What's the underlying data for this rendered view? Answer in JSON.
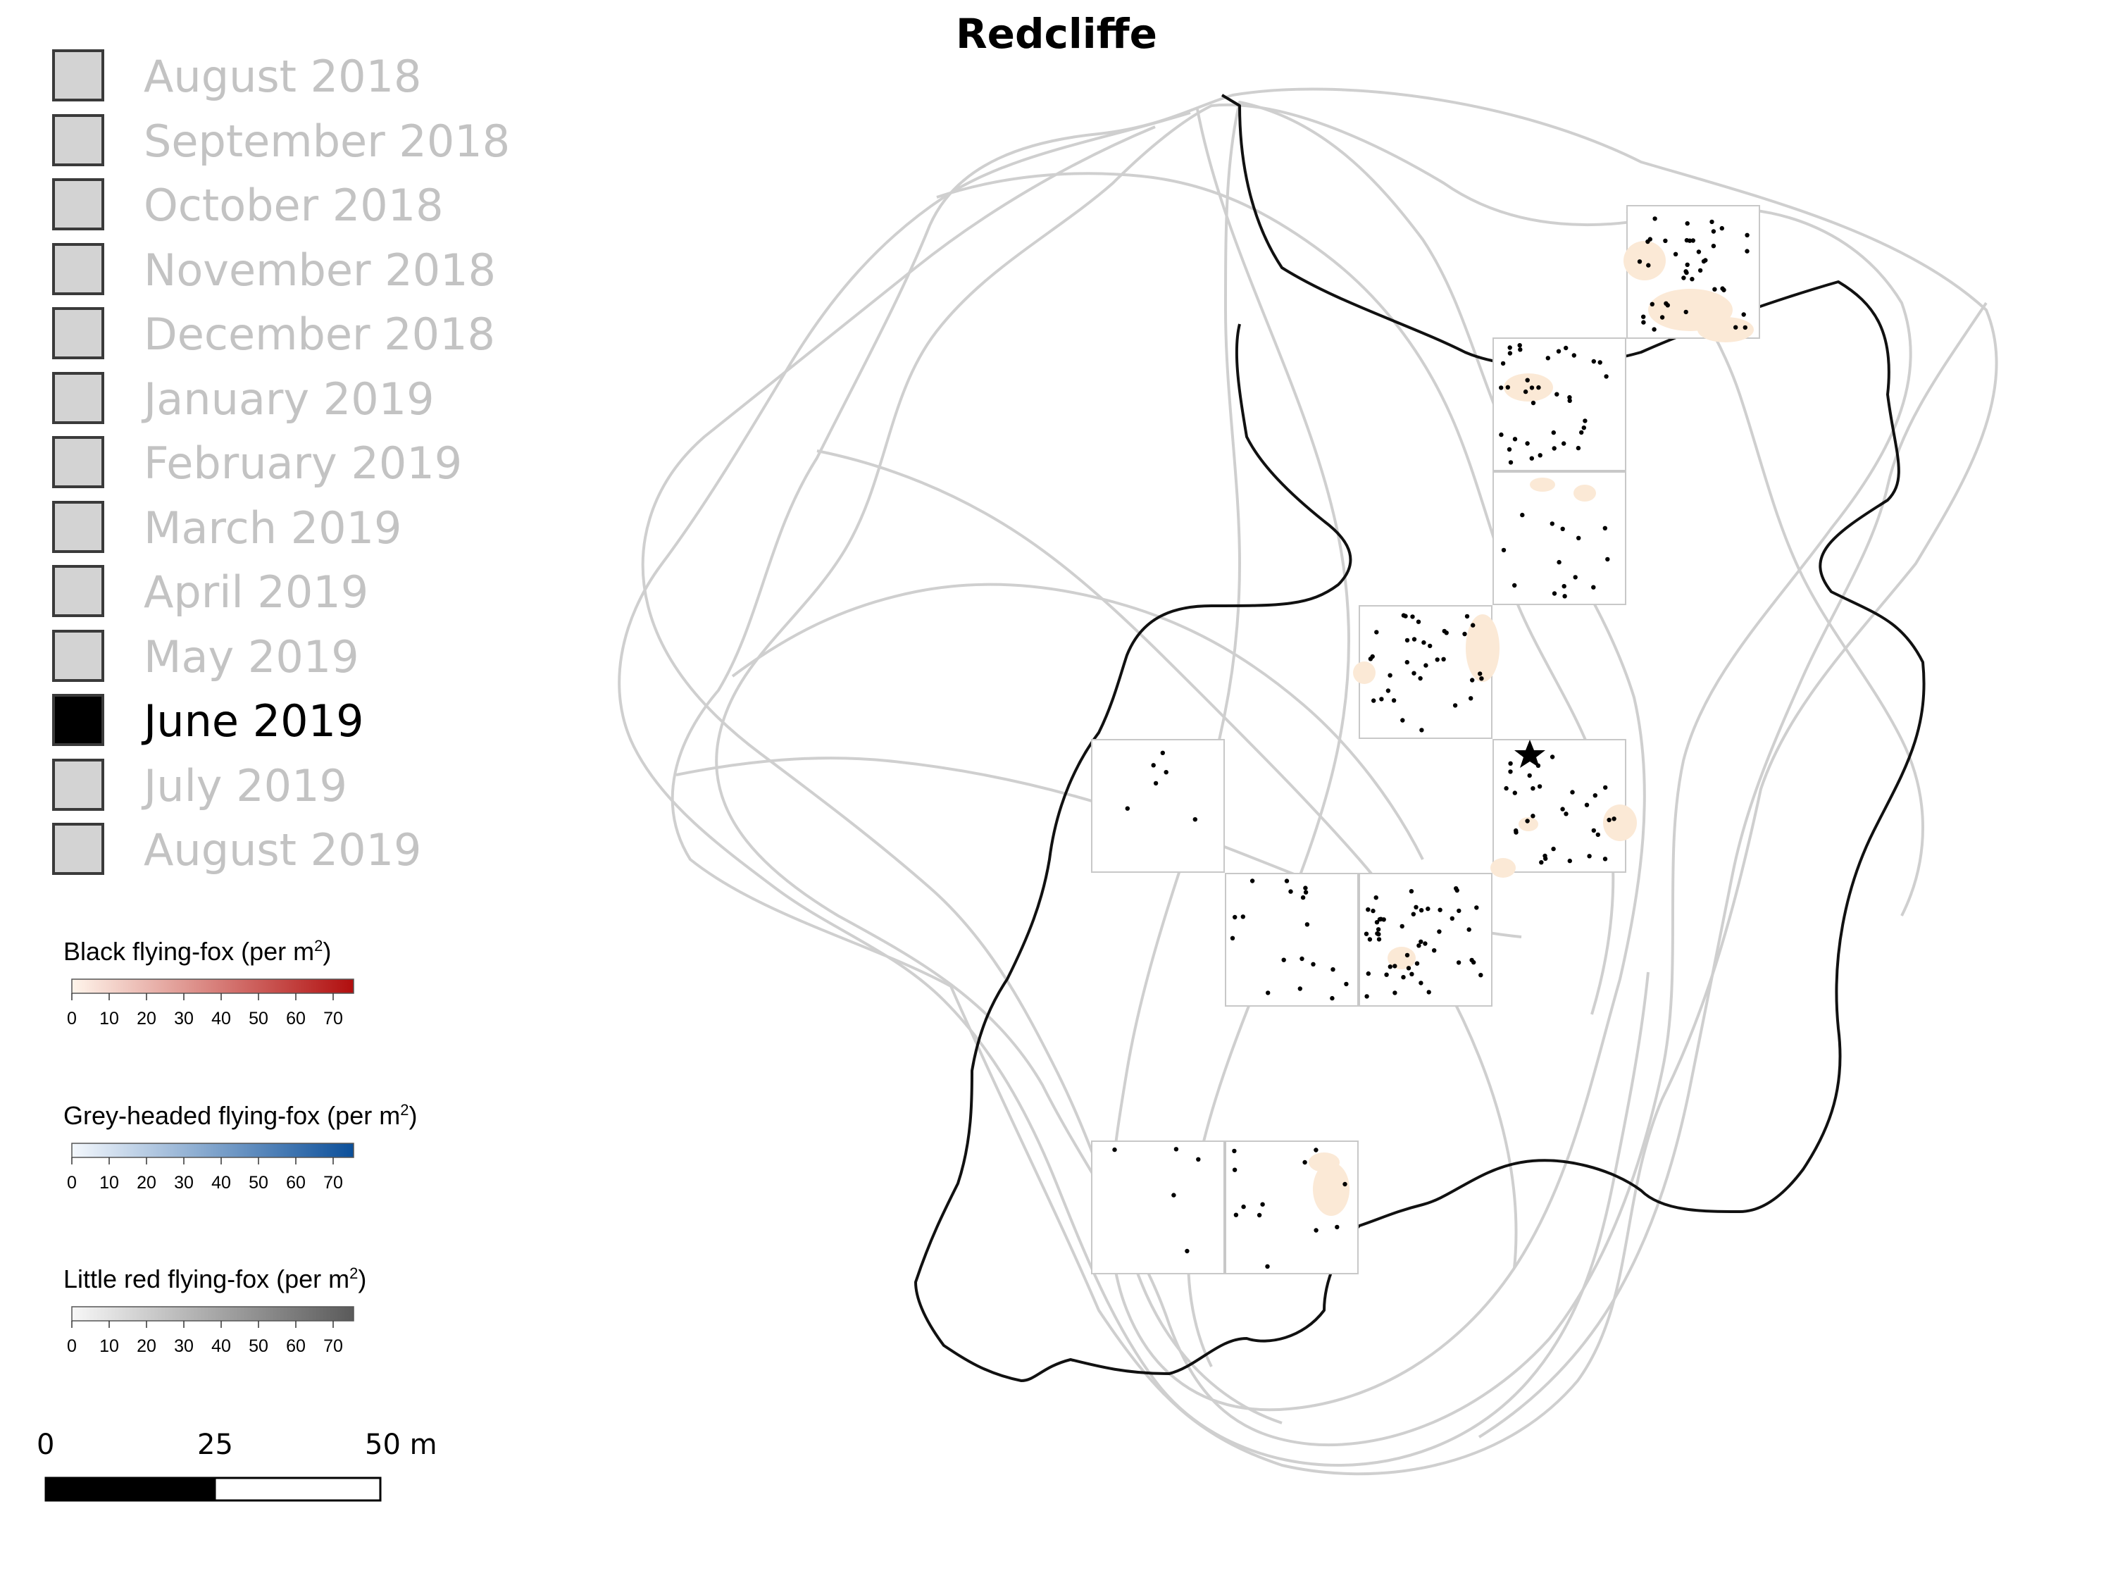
{
  "title": "Redcliffe",
  "months": [
    {
      "label": "August 2018",
      "active": false
    },
    {
      "label": "September 2018",
      "active": false
    },
    {
      "label": "October 2018",
      "active": false
    },
    {
      "label": "November 2018",
      "active": false
    },
    {
      "label": "December 2018",
      "active": false
    },
    {
      "label": "January 2019",
      "active": false
    },
    {
      "label": "February 2019",
      "active": false
    },
    {
      "label": "March 2019",
      "active": false
    },
    {
      "label": "April 2019",
      "active": false
    },
    {
      "label": "May 2019",
      "active": false
    },
    {
      "label": "June 2019",
      "active": true
    },
    {
      "label": "July 2019",
      "active": false
    },
    {
      "label": "August 2019",
      "active": false
    }
  ],
  "density_legends": [
    {
      "title": "Black flying-fox (per m",
      "unit_exp": "2",
      "title_end": ")",
      "color_low": "#fff5eb",
      "color_high": "#b10e0e",
      "ticks": [
        "0",
        "10",
        "20",
        "30",
        "40",
        "50",
        "60",
        "70"
      ]
    },
    {
      "title": "Grey-headed flying-fox (per m",
      "unit_exp": "2",
      "title_end": ")",
      "color_low": "#f4f8fd",
      "color_high": "#0b4f9a",
      "ticks": [
        "0",
        "10",
        "20",
        "30",
        "40",
        "50",
        "60",
        "70"
      ]
    },
    {
      "title": "Little red flying-fox (per m",
      "unit_exp": "2",
      "title_end": ")",
      "color_low": "#f7f7f7",
      "color_high": "#5a5a5a",
      "ticks": [
        "0",
        "10",
        "20",
        "30",
        "40",
        "50",
        "60",
        "70"
      ]
    }
  ],
  "scale_bar": {
    "labels": [
      "0",
      "25",
      "50 m"
    ]
  },
  "colors": {
    "track": "#cfcfcf",
    "boundary": "#111111",
    "density_patch": "#fbe9d6",
    "point": "#000000",
    "plot_frame": "#c8c8c8"
  },
  "icons": {
    "roost_marker": "star-icon"
  }
}
